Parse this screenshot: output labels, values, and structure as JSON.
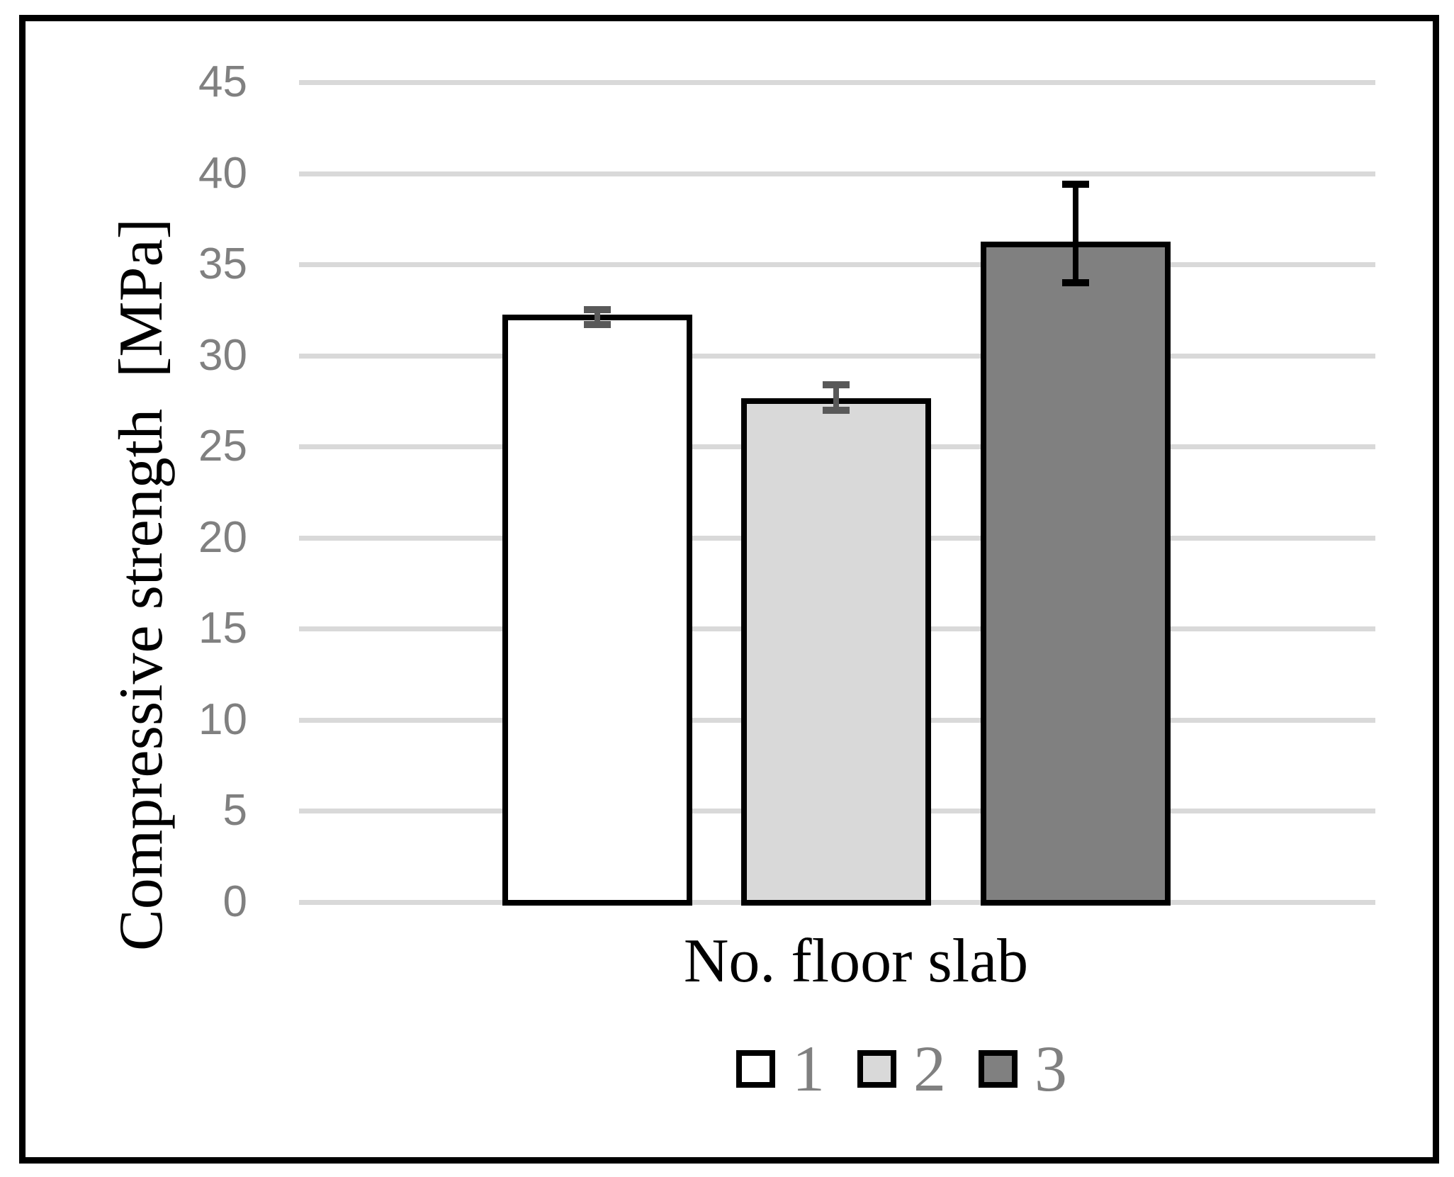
{
  "figure": {
    "background": "#ffffff",
    "border_color": "#000000"
  },
  "chart_data": {
    "type": "bar",
    "title": "",
    "xlabel": "No. floor slab",
    "ylabel": "Compressive strength  [MPa]",
    "ylim": [
      0,
      45
    ],
    "yticks": [
      0,
      5,
      10,
      15,
      20,
      25,
      30,
      35,
      40,
      45
    ],
    "grid": "horizontal gridlines on",
    "legend_position": "bottom",
    "categories": [
      "No. floor slab"
    ],
    "series": [
      {
        "name": "1",
        "value": 32.1,
        "error_low": 31.7,
        "error_high": 32.5,
        "fill": "#ffffff",
        "error_color": "#595959"
      },
      {
        "name": "2",
        "value": 27.5,
        "error_low": 27.0,
        "error_high": 28.4,
        "fill": "#d9d9d9",
        "error_color": "#595959"
      },
      {
        "name": "3",
        "value": 36.1,
        "error_low": 34.0,
        "error_high": 39.4,
        "fill": "#808080",
        "error_color": "#000000"
      }
    ],
    "colors": {
      "bar_border": "#000000",
      "gridline": "#d9d9d9",
      "tick_label": "#808080",
      "axis_title": "#000000",
      "legend_label": "#808080"
    }
  }
}
